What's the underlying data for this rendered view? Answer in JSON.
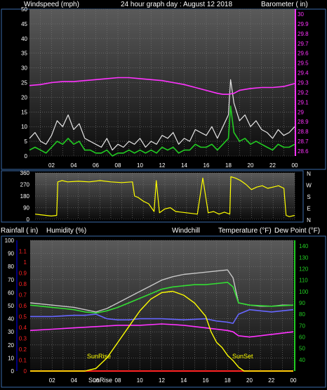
{
  "colors": {
    "background": "#000000",
    "text": "#ffffff",
    "wind_gust": "#e6e6e6",
    "wind_avg": "#22cc22",
    "barometer": "#ff33ff",
    "wind_dir": "#ffff00",
    "temperature": "#c8c8c8",
    "dewpoint": "#6666ff",
    "humidity": "#9999ff",
    "windchill": "#33dd33",
    "rainfall": "#ff2222",
    "solar": "#ffff00",
    "left_axis": "#000080",
    "right_axis_baro": "#ff33ff",
    "right_axis_temp": "#22cc22",
    "tick_text": "#ffffff"
  },
  "chart_data": [
    {
      "type": "line",
      "title": "24 hour graph day : August 12 2018",
      "ylabel": "Windspeed (mph)",
      "y2label": "Barometer ( in)",
      "xticks": [
        "02",
        "04",
        "06",
        "08",
        "10",
        "12",
        "14",
        "16",
        "18",
        "20",
        "22",
        "00"
      ],
      "yticks": [
        "0",
        "5",
        "10",
        "15",
        "20",
        "25",
        "30",
        "35",
        "40",
        "45",
        "50"
      ],
      "y2ticks": [
        "28.6",
        "28.7",
        "28.8",
        "28.9",
        "29",
        "29.1",
        "29.2",
        "29.3",
        "29.4",
        "29.5",
        "29.6",
        "29.7",
        "29.8",
        "29.9",
        "30"
      ],
      "ylim": [
        0,
        50
      ],
      "y2lim": [
        28.55,
        30.05
      ],
      "xlim": [
        0,
        24
      ],
      "grid": true,
      "series": [
        {
          "name": "Wind gust",
          "x": [
            0,
            0.5,
            1,
            1.5,
            2,
            2.5,
            3,
            3.5,
            4,
            4.5,
            5,
            5.5,
            6,
            6.5,
            7,
            7.5,
            8,
            8.5,
            9,
            9.5,
            10,
            10.5,
            11,
            11.5,
            12,
            12.5,
            13,
            13.5,
            14,
            14.5,
            15,
            15.5,
            16,
            16.5,
            17,
            17.5,
            18,
            18.2,
            18.5,
            19,
            19.5,
            20,
            20.5,
            21,
            21.5,
            22,
            22.5,
            23,
            23.5,
            24
          ],
          "y": [
            6,
            8,
            5,
            4,
            7,
            12,
            10,
            14,
            9,
            11,
            6,
            5,
            4,
            3,
            6,
            2,
            4,
            3,
            5,
            4,
            6,
            3,
            5,
            4,
            7,
            6,
            8,
            4,
            6,
            5,
            9,
            8,
            7,
            10,
            6,
            10,
            14,
            26,
            18,
            12,
            14,
            10,
            12,
            9,
            8,
            6,
            9,
            7,
            8,
            10
          ]
        },
        {
          "name": "Wind average",
          "x": [
            0,
            0.5,
            1,
            1.5,
            2,
            2.5,
            3,
            3.5,
            4,
            4.5,
            5,
            5.5,
            6,
            6.5,
            7,
            7.5,
            8,
            8.5,
            9,
            9.5,
            10,
            10.5,
            11,
            11.5,
            12,
            12.5,
            13,
            13.5,
            14,
            14.5,
            15,
            15.5,
            16,
            16.5,
            17,
            17.5,
            18,
            18.2,
            18.5,
            19,
            19.5,
            20,
            20.5,
            21,
            21.5,
            22,
            22.5,
            23,
            23.5,
            24
          ],
          "y": [
            2,
            3,
            2,
            1,
            3,
            5,
            4,
            6,
            4,
            5,
            2,
            2,
            1,
            1,
            2,
            0,
            1,
            1,
            2,
            1,
            2,
            1,
            2,
            1,
            3,
            2,
            3,
            1,
            2,
            2,
            4,
            3,
            3,
            4,
            2,
            4,
            6,
            17,
            8,
            5,
            6,
            4,
            5,
            4,
            3,
            2,
            4,
            3,
            3,
            4
          ]
        },
        {
          "name": "Barometer",
          "x": [
            0,
            1,
            2,
            3,
            4,
            5,
            6,
            7,
            8,
            9,
            10,
            11,
            12,
            13,
            14,
            15,
            16,
            17,
            17.5,
            18,
            18.5,
            19,
            20,
            21,
            22,
            23,
            24
          ],
          "y": [
            29.27,
            29.28,
            29.3,
            29.31,
            29.31,
            29.32,
            29.33,
            29.34,
            29.35,
            29.35,
            29.34,
            29.33,
            29.32,
            29.3,
            29.28,
            29.25,
            29.22,
            29.19,
            29.18,
            29.18,
            29.19,
            29.22,
            29.24,
            29.25,
            29.25,
            29.26,
            29.29
          ]
        }
      ]
    },
    {
      "type": "line",
      "ylabel": "",
      "yticks": [
        "0",
        "90",
        "180",
        "270",
        "360"
      ],
      "y2ticks": [
        "N",
        "W",
        "S",
        "E",
        "N"
      ],
      "ylim": [
        0,
        360
      ],
      "xlim": [
        0,
        24
      ],
      "grid": true,
      "series": [
        {
          "name": "Wind direction",
          "x": [
            0,
            0.5,
            1,
            1.5,
            2,
            2.1,
            2.5,
            3,
            4,
            5,
            6,
            7,
            8,
            9,
            9.2,
            9.5,
            10,
            10.5,
            11,
            11.2,
            11.5,
            12,
            12.5,
            13,
            14,
            15,
            15.5,
            16,
            16.5,
            17,
            17.5,
            18,
            18.1,
            18.5,
            19,
            19.5,
            20,
            20.5,
            21,
            21.5,
            22,
            22.5,
            23,
            23.2,
            23.5,
            24
          ],
          "y": [
            40,
            35,
            30,
            25,
            30,
            290,
            300,
            290,
            295,
            290,
            300,
            290,
            285,
            290,
            180,
            170,
            140,
            120,
            60,
            300,
            50,
            80,
            90,
            60,
            50,
            40,
            320,
            50,
            60,
            40,
            55,
            40,
            330,
            320,
            300,
            270,
            230,
            250,
            260,
            240,
            250,
            260,
            240,
            30,
            20,
            30
          ]
        }
      ]
    },
    {
      "type": "line",
      "ylabel": "Rainfall ( in)",
      "ylabel2": "Humidity (%)",
      "label_windchill": "Windchill",
      "y2label": "Temperature (°F)",
      "y2label2": "Dew Point (°F)",
      "xticks": [
        "02",
        "04",
        "06",
        "08",
        "10",
        "12",
        "14",
        "16",
        "18",
        "20",
        "22",
        "00"
      ],
      "rain_ticks": [
        "0",
        "0.1",
        "0.2",
        "0.3",
        "0.4",
        "0.5",
        "0.6",
        "0.7",
        "0.8",
        "0.9",
        "1",
        "1.1"
      ],
      "humidity_ticks": [
        "0",
        "10",
        "20",
        "30",
        "40",
        "50",
        "60",
        "70",
        "80",
        "90",
        "100"
      ],
      "temp_ticks": [
        "40",
        "50",
        "60",
        "70",
        "80",
        "90",
        "100",
        "110",
        "120",
        "130",
        "140"
      ],
      "ylim_humidity": [
        0,
        100
      ],
      "ylim_temp": [
        30,
        145
      ],
      "xlim": [
        0,
        24
      ],
      "grid": true,
      "annotations": [
        "SunRise",
        "SunSet"
      ],
      "marker_label": "SunRise",
      "series": [
        {
          "name": "Temperature",
          "x": [
            0,
            1,
            2,
            3,
            4,
            5,
            5.5,
            6,
            7,
            8,
            9,
            10,
            11,
            12,
            13,
            14,
            15,
            16,
            17,
            18,
            18.5,
            19,
            20,
            21,
            22,
            23,
            24
          ],
          "y": [
            90,
            89,
            88,
            87,
            86,
            84,
            83,
            82,
            85,
            90,
            95,
            100,
            105,
            110,
            113,
            115,
            116,
            117,
            118,
            119,
            112,
            90,
            88,
            87,
            87,
            88,
            88
          ]
        },
        {
          "name": "Dew Point",
          "x": [
            0,
            2,
            4,
            5,
            6,
            7,
            8,
            9,
            10,
            12,
            14,
            16,
            17,
            18,
            18.5,
            19,
            20,
            22,
            24
          ],
          "y": [
            78,
            78,
            79,
            79,
            80,
            76,
            75,
            75,
            76,
            76,
            75,
            76,
            74,
            73,
            72,
            80,
            84,
            82,
            84
          ]
        },
        {
          "name": "Windchill",
          "x": [
            0,
            1,
            2,
            3,
            4,
            5,
            6,
            7,
            8,
            9,
            10,
            11,
            12,
            13,
            14,
            15,
            16,
            17,
            18,
            18.5,
            19,
            20,
            22,
            24
          ],
          "y": [
            88,
            87,
            86,
            85,
            84,
            82,
            81,
            83,
            86,
            90,
            94,
            98,
            102,
            104,
            105,
            106,
            106,
            107,
            108,
            104,
            90,
            88,
            87,
            88
          ]
        },
        {
          "name": "Humidity",
          "x": [
            0,
            2,
            4,
            6,
            8,
            10,
            12,
            14,
            16,
            18,
            18.5,
            19,
            20,
            21,
            22,
            23,
            24
          ],
          "y": [
            31,
            32,
            33,
            34,
            35,
            35,
            36,
            35,
            33,
            31,
            30,
            27,
            26,
            27,
            28,
            29,
            30
          ]
        },
        {
          "name": "Rainfall",
          "x": [
            0,
            24
          ],
          "y": [
            0,
            0
          ]
        },
        {
          "name": "Solar",
          "x": [
            0,
            5,
            6,
            7,
            8,
            9,
            10,
            11,
            12,
            13,
            14,
            15,
            16,
            16.5,
            17,
            17.5,
            18,
            18.5,
            19,
            19.5,
            20,
            24
          ],
          "y": [
            0,
            0,
            2,
            10,
            22,
            34,
            46,
            55,
            60,
            61,
            58,
            52,
            42,
            30,
            22,
            18,
            12,
            8,
            3,
            0,
            0,
            0
          ]
        }
      ]
    }
  ]
}
